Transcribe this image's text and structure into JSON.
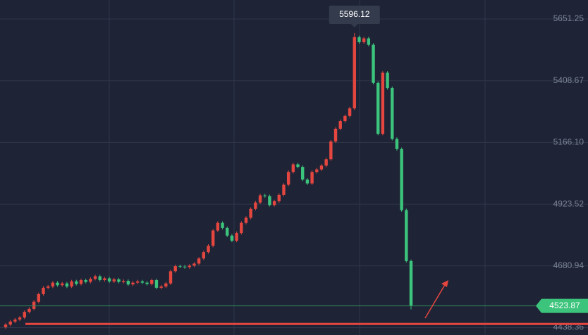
{
  "chart_data": {
    "type": "candlestick",
    "series": [
      {
        "up_color": "#e5463f",
        "down_color": "#3cc47c",
        "open": [
          4440,
          4450,
          4462,
          4470,
          4478,
          4500,
          4512,
          4540,
          4570,
          4595,
          4600,
          4615,
          4605,
          4612,
          4600,
          4620,
          4610,
          4625,
          4618,
          4630,
          4640,
          4625,
          4632,
          4620,
          4628,
          4618,
          4622,
          4608,
          4615,
          4620,
          4615,
          4610,
          4625,
          4595,
          4600,
          4612,
          4660,
          4680,
          4678,
          4676,
          4682,
          4690,
          4710,
          4735,
          4760,
          4820,
          4850,
          4830,
          4800,
          4780,
          4810,
          4850,
          4870,
          4905,
          4930,
          4958,
          4955,
          4920,
          4935,
          4960,
          5000,
          5050,
          5080,
          5070,
          5020,
          5005,
          5050,
          5060,
          5075,
          5100,
          5170,
          5220,
          5250,
          5270,
          5300,
          5580,
          5560,
          5575,
          5550,
          5400,
          5200,
          5440,
          5380,
          5180,
          5140,
          4900,
          4700
        ],
        "high": [
          4456,
          4468,
          4476,
          4484,
          4506,
          4518,
          4546,
          4576,
          4601,
          4606,
          4621,
          4621,
          4618,
          4618,
          4626,
          4626,
          4631,
          4631,
          4636,
          4646,
          4646,
          4638,
          4638,
          4634,
          4634,
          4628,
          4628,
          4621,
          4626,
          4626,
          4621,
          4631,
          4631,
          4606,
          4618,
          4666,
          4686,
          4686,
          4684,
          4688,
          4696,
          4716,
          4741,
          4766,
          4826,
          4856,
          4856,
          4836,
          4806,
          4816,
          4856,
          4876,
          4911,
          4936,
          4964,
          4964,
          4961,
          4941,
          4966,
          5006,
          5056,
          5086,
          5086,
          5076,
          5026,
          5056,
          5066,
          5081,
          5106,
          5176,
          5226,
          5256,
          5276,
          5306,
          5596.12,
          5586,
          5581,
          5581,
          5556,
          5406,
          5446,
          5446,
          5386,
          5186,
          5146,
          4906,
          4706
        ],
        "low": [
          4434,
          4444,
          4456,
          4464,
          4472,
          4494,
          4506,
          4534,
          4564,
          4589,
          4594,
          4599,
          4599,
          4594,
          4594,
          4604,
          4604,
          4612,
          4612,
          4624,
          4619,
          4619,
          4614,
          4614,
          4612,
          4612,
          4602,
          4602,
          4609,
          4609,
          4604,
          4604,
          4589,
          4589,
          4594,
          4606,
          4654,
          4672,
          4670,
          4670,
          4676,
          4684,
          4704,
          4729,
          4754,
          4814,
          4824,
          4794,
          4774,
          4774,
          4804,
          4844,
          4864,
          4899,
          4924,
          4949,
          4914,
          4914,
          4929,
          4954,
          4994,
          5044,
          5064,
          5014,
          4999,
          4999,
          5044,
          5054,
          5069,
          5094,
          5164,
          5214,
          5244,
          5264,
          5294,
          5554,
          5554,
          5544,
          5394,
          5194,
          5194,
          5374,
          5174,
          5134,
          4894,
          4694,
          4510
        ],
        "close": [
          4450,
          4462,
          4470,
          4478,
          4500,
          4512,
          4540,
          4570,
          4595,
          4600,
          4615,
          4605,
          4612,
          4600,
          4620,
          4610,
          4625,
          4618,
          4630,
          4640,
          4625,
          4632,
          4620,
          4628,
          4618,
          4622,
          4608,
          4615,
          4620,
          4615,
          4610,
          4625,
          4595,
          4600,
          4612,
          4660,
          4680,
          4678,
          4676,
          4682,
          4690,
          4710,
          4735,
          4760,
          4820,
          4850,
          4830,
          4800,
          4780,
          4810,
          4850,
          4870,
          4905,
          4930,
          4958,
          4955,
          4920,
          4935,
          4960,
          5000,
          5050,
          5080,
          5070,
          5020,
          5005,
          5050,
          5060,
          5075,
          5100,
          5170,
          5220,
          5250,
          5270,
          5300,
          5580,
          5560,
          5575,
          5550,
          5400,
          5200,
          5440,
          5380,
          5180,
          5140,
          4900,
          4700,
          4523.87
        ]
      }
    ],
    "support_line": 4453,
    "ylim": [
      4409.3,
      5725.9
    ],
    "yticks": [
      5651.25,
      5408.67,
      {
        "value": 5166.1,
        "label": "5166.10"
      },
      4923.52,
      4680.94,
      4438.36
    ],
    "grid": true
  }
}
